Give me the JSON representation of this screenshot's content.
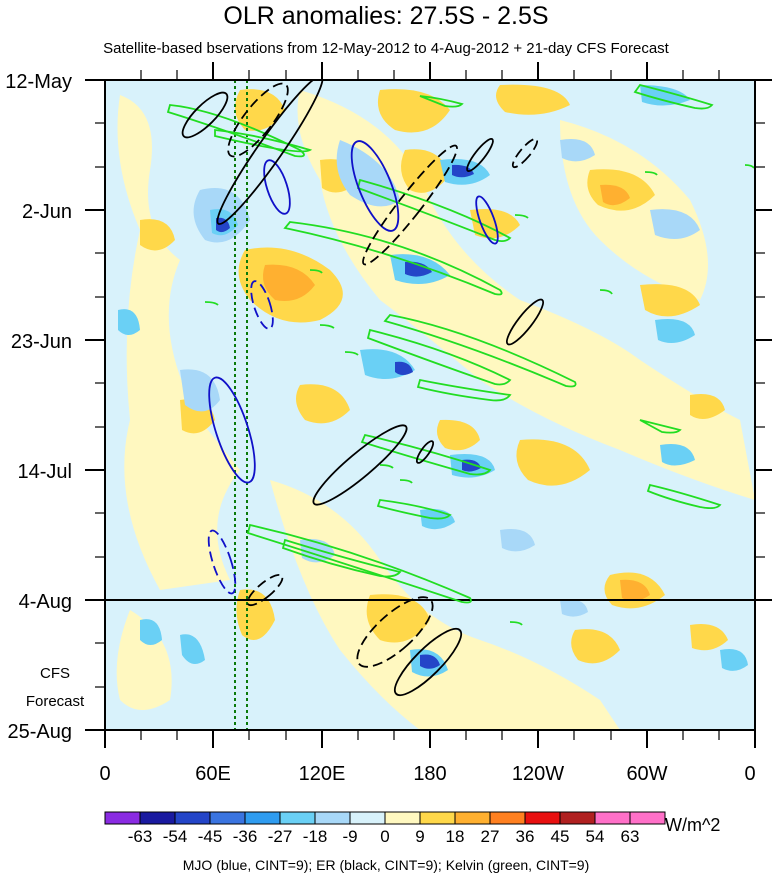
{
  "title": "OLR anomalies: 27.5S - 2.5S",
  "subtitle": "Satellite-based bservations from 12-May-2012 to 4-Aug-2012 + 21-day CFS Forecast",
  "footnote": "MJO (blue, CINT=9); ER (black, CINT=9); Kelvin (green, CINT=9)",
  "colorbar": {
    "unit": "W/m^2",
    "levels": [
      "-63",
      "-54",
      "-45",
      "-36",
      "-27",
      "-18",
      "-9",
      "0",
      "9",
      "18",
      "27",
      "36",
      "45",
      "54",
      "63"
    ],
    "colors": [
      "#8a2be2",
      "#1a1aa0",
      "#2445c8",
      "#3a74e0",
      "#2f9cf0",
      "#6ad0f5",
      "#a8d8f8",
      "#d8f2fb",
      "#fff8c0",
      "#ffd84a",
      "#ffb030",
      "#ff8020",
      "#e81010",
      "#b02020",
      "#ff70c8",
      "#ff70c8"
    ]
  },
  "chart_data": {
    "type": "heatmap",
    "x_axis": {
      "ticks": [
        "0",
        "60E",
        "120E",
        "180",
        "120W",
        "60W",
        "0"
      ],
      "range": [
        "0",
        "0"
      ]
    },
    "y_axis": {
      "ticks": [
        "12-May",
        "2-Jun",
        "23-Jun",
        "14-Jul",
        "4-Aug",
        "25-Aug"
      ],
      "range": [
        "12-May",
        "25-Aug"
      ]
    },
    "forecast_label": [
      "CFS",
      "Forecast"
    ],
    "forecast_start": "4-Aug",
    "colors": {
      "mjo": "#1010c8",
      "er": "#000000",
      "kelvin": "#22dd22",
      "reference_lines": "#0a7a0a"
    }
  }
}
